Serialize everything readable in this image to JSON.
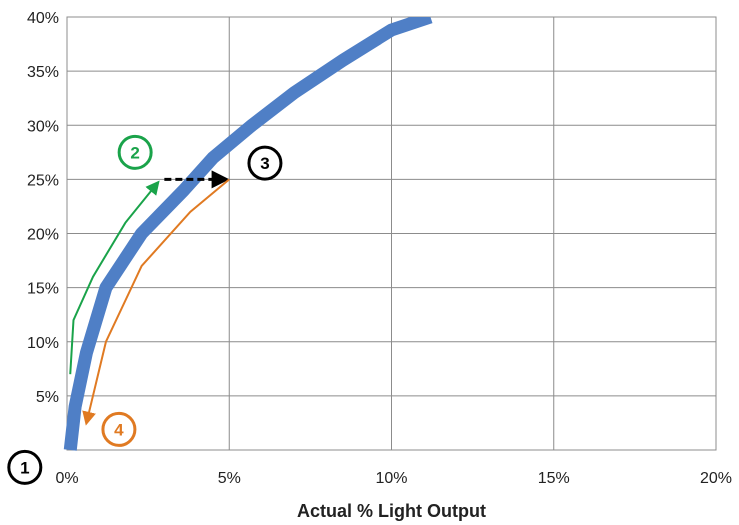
{
  "chart_data": {
    "type": "line",
    "title": "",
    "xlabel": "Actual % Light Output",
    "ylabel": "",
    "xlim": [
      0,
      20
    ],
    "ylim": [
      0,
      40
    ],
    "x_ticks": [
      "0%",
      "5%",
      "10%",
      "15%",
      "20%"
    ],
    "y_ticks": [
      "5%",
      "10%",
      "15%",
      "20%",
      "25%",
      "30%",
      "35%",
      "40%"
    ],
    "grid": true,
    "legend": "none",
    "series": [
      {
        "name": "",
        "color": "#4f7fc6",
        "points": [
          [
            0.1,
            0
          ],
          [
            0.25,
            4
          ],
          [
            0.6,
            9
          ],
          [
            1.2,
            15
          ],
          [
            2.3,
            20
          ],
          [
            3.6,
            24
          ],
          [
            4.5,
            27
          ],
          [
            5.7,
            30
          ],
          [
            7.0,
            33
          ],
          [
            8.5,
            36
          ],
          [
            10.0,
            38.8
          ],
          [
            11.2,
            40
          ]
        ]
      }
    ],
    "annotations": {
      "arrows": [
        {
          "name": "green-arrow",
          "color": "#1aa34a",
          "style": "solid",
          "points": [
            [
              0.1,
              7
            ],
            [
              0.2,
              12
            ],
            [
              0.8,
              16
            ],
            [
              1.8,
              21
            ],
            [
              2.8,
              24.7
            ]
          ]
        },
        {
          "name": "black-dashed-arrow",
          "color": "#000000",
          "style": "dashed",
          "points": [
            [
              3.0,
              25
            ],
            [
              4.9,
              25
            ]
          ]
        },
        {
          "name": "orange-arrow",
          "color": "#e07a22",
          "style": "solid",
          "points": [
            [
              5.0,
              25
            ],
            [
              3.8,
              22
            ],
            [
              2.3,
              17
            ],
            [
              1.2,
              10
            ],
            [
              0.6,
              2.5
            ]
          ]
        }
      ],
      "markers": [
        {
          "label": "1",
          "color": "#000000",
          "x": -1.3,
          "y": -1.6
        },
        {
          "label": "2",
          "color": "#1aa34a",
          "x": 2.1,
          "y": 27.5
        },
        {
          "label": "3",
          "color": "#000000",
          "x": 6.1,
          "y": 26.5
        },
        {
          "label": "4",
          "color": "#e07a22",
          "x": 1.6,
          "y": 1.9
        }
      ]
    }
  }
}
